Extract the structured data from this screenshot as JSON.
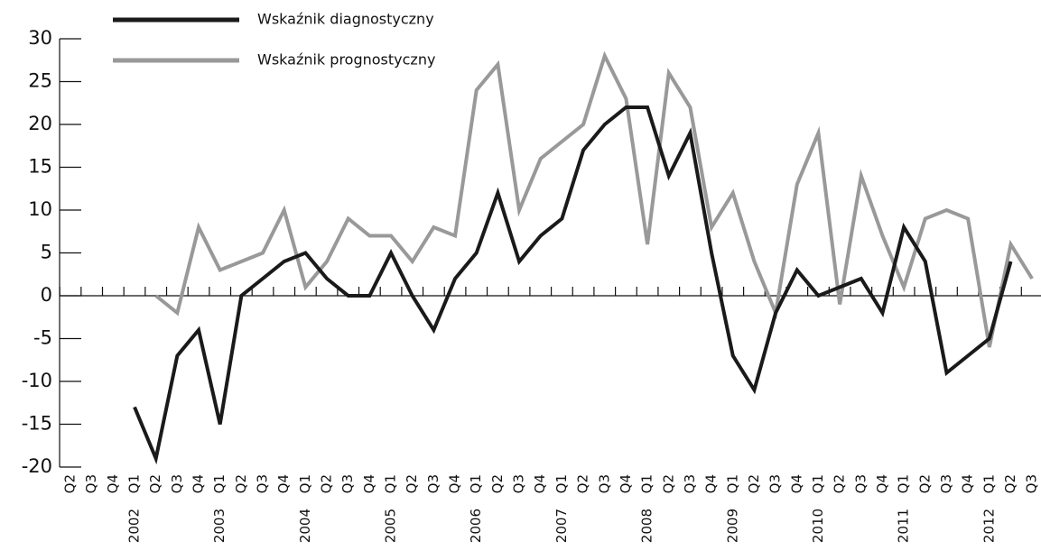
{
  "chart_data": {
    "type": "line",
    "categories": [
      "Q2",
      "Q3",
      "Q4",
      "Q1",
      "Q2",
      "Q3",
      "Q4",
      "Q1",
      "Q2",
      "Q3",
      "Q4",
      "Q1",
      "Q2",
      "Q3",
      "Q4",
      "Q1",
      "Q2",
      "Q3",
      "Q4",
      "Q1",
      "Q2",
      "Q3",
      "Q4",
      "Q1",
      "Q2",
      "Q3",
      "Q4",
      "Q1",
      "Q2",
      "Q3",
      "Q4",
      "Q1",
      "Q2",
      "Q3",
      "Q4",
      "Q1",
      "Q2",
      "Q3",
      "Q4",
      "Q1",
      "Q2",
      "Q3",
      "Q4",
      "Q1",
      "Q2",
      "Q3"
    ],
    "years": [
      null,
      null,
      null,
      "2002",
      null,
      null,
      null,
      "2003",
      null,
      null,
      null,
      "2004",
      null,
      null,
      null,
      "2005",
      null,
      null,
      null,
      "2006",
      null,
      null,
      null,
      "2007",
      null,
      null,
      null,
      "2008",
      null,
      null,
      null,
      "2009",
      null,
      null,
      null,
      "2010",
      null,
      null,
      null,
      "2011",
      null,
      null,
      null,
      "2012",
      null,
      null
    ],
    "series": [
      {
        "name": "Wskaźnik diagnostyczny",
        "color": "#1a1a1a",
        "values": [
          null,
          null,
          null,
          -13,
          -19,
          -7,
          -4,
          -15,
          0,
          2,
          4,
          5,
          2,
          0,
          0,
          5,
          0,
          -4,
          2,
          5,
          12,
          4,
          7,
          9,
          17,
          20,
          22,
          22,
          14,
          19,
          5,
          -7,
          -11,
          -2,
          3,
          0,
          1,
          2,
          -2,
          8,
          4,
          -9,
          -7,
          -5,
          4,
          null
        ]
      },
      {
        "name": "Wskaźnik prognostyczny",
        "color": "#999999",
        "values": [
          null,
          null,
          null,
          null,
          0,
          -2,
          8,
          3,
          4,
          5,
          10,
          1,
          4,
          9,
          7,
          7,
          4,
          8,
          7,
          24,
          27,
          10,
          16,
          18,
          20,
          28,
          23,
          6,
          26,
          22,
          8,
          12,
          4,
          -2,
          13,
          19,
          -1,
          14,
          7,
          1,
          9,
          10,
          9,
          -6,
          6,
          2
        ]
      }
    ],
    "ylim": [
      -20,
      30
    ],
    "yticks": [
      -20,
      -15,
      -10,
      -5,
      0,
      5,
      10,
      15,
      20,
      25,
      30
    ]
  }
}
